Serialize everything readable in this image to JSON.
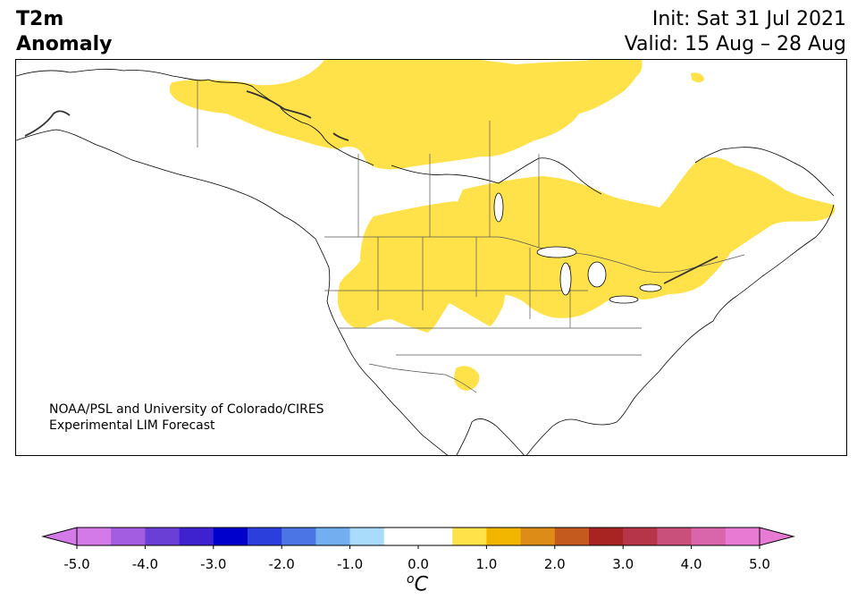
{
  "title": {
    "line1": "T2m",
    "line2": "Anomaly",
    "init": "Init: Sat 31 Jul 2021",
    "valid": "Valid: 15 Aug – 28 Aug"
  },
  "credit": {
    "line1": "NOAA/PSL and University of Colorado/CIRES",
    "line2": "Experimental LIM Forecast"
  },
  "colorbar": {
    "unit_sup": "o",
    "unit": "C",
    "tick_labels": [
      "-5.0",
      "-4.0",
      "-3.0",
      "-2.0",
      "-1.0",
      "0.0",
      "1.0",
      "2.0",
      "3.0",
      "4.0",
      "5.0"
    ],
    "colors": [
      "#d47ae8",
      "#a25de0",
      "#6a3fd6",
      "#3e22cf",
      "#0000cc",
      "#2b3fdc",
      "#4b74e4",
      "#72aef0",
      "#a9dbfb",
      "#ffffff",
      "#ffffff",
      "#ffe24a",
      "#f2b600",
      "#dd8c18",
      "#c45a1e",
      "#a82422",
      "#b73548",
      "#c9507a",
      "#d965aa",
      "#e87ad4"
    ],
    "low_extend_color": "#d47ae8",
    "high_extend_color": "#e87ad4"
  },
  "map": {
    "anomaly_fill_color": "#ffe24a",
    "anomaly_level": "0.5 to 1.0"
  }
}
